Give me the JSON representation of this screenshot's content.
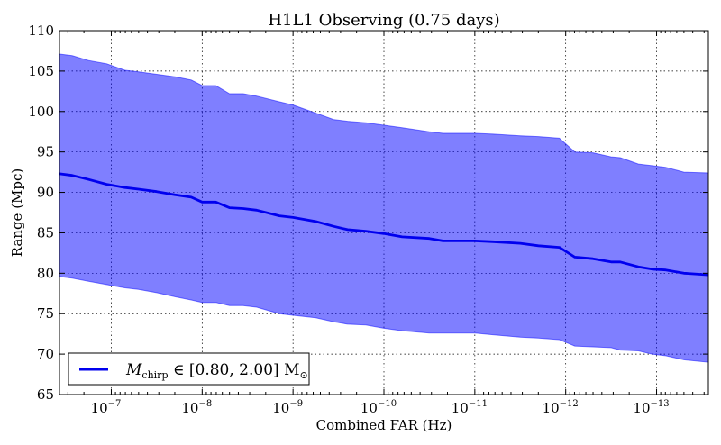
{
  "chart_data": {
    "type": "area",
    "title": "H1L1 Observing (0.75 days)",
    "xlabel": "Combined FAR (Hz)",
    "ylabel": "Range (Mpc)",
    "x_scale": "log",
    "x_reversed": true,
    "xlim_log10": [
      -6.43,
      -13.57
    ],
    "ylim": [
      65,
      110
    ],
    "grid": true,
    "legend_position": "bottom-left",
    "x_ticks": [
      {
        "log10": -7,
        "label": "10",
        "exp": "−7"
      },
      {
        "log10": -8,
        "label": "10",
        "exp": "−8"
      },
      {
        "log10": -9,
        "label": "10",
        "exp": "−9"
      },
      {
        "log10": -10,
        "label": "10",
        "exp": "−10"
      },
      {
        "log10": -11,
        "label": "10",
        "exp": "−11"
      },
      {
        "log10": -12,
        "label": "10",
        "exp": "−12"
      },
      {
        "log10": -13,
        "label": "10",
        "exp": "−13"
      }
    ],
    "y_ticks": [
      65,
      70,
      75,
      80,
      85,
      90,
      95,
      100,
      105,
      110
    ],
    "series": [
      {
        "name": "M_chirp ∈ [0.80, 2.00] M☉",
        "legend_label": "M",
        "legend_sub": "chirp",
        "legend_rest": " ∈ [0.80, 2.00] M",
        "legend_tail": "⊙",
        "color": "#0000ee",
        "band_color": "#0000ff",
        "band_alpha": 0.5,
        "x_log10": [
          -6.43,
          -6.57,
          -6.75,
          -6.95,
          -7.15,
          -7.3,
          -7.5,
          -7.7,
          -7.88,
          -8.0,
          -8.15,
          -8.3,
          -8.45,
          -8.6,
          -8.85,
          -9.0,
          -9.25,
          -9.45,
          -9.6,
          -9.8,
          -10.0,
          -10.2,
          -10.5,
          -10.65,
          -11.0,
          -11.2,
          -11.5,
          -11.7,
          -11.93,
          -12.1,
          -12.3,
          -12.5,
          -12.6,
          -12.8,
          -12.95,
          -13.1,
          -13.3,
          -13.57
        ],
        "center": [
          92.3,
          92.1,
          91.6,
          91.0,
          90.6,
          90.4,
          90.1,
          89.7,
          89.4,
          88.8,
          88.8,
          88.1,
          88.0,
          87.8,
          87.1,
          86.9,
          86.4,
          85.8,
          85.4,
          85.2,
          84.9,
          84.5,
          84.3,
          84.0,
          84.0,
          83.9,
          83.7,
          83.4,
          83.2,
          82.0,
          81.8,
          81.4,
          81.4,
          80.8,
          80.5,
          80.4,
          80.0,
          79.8
        ],
        "upper": [
          107.1,
          106.9,
          106.3,
          105.9,
          105.1,
          104.9,
          104.6,
          104.3,
          103.9,
          103.2,
          103.2,
          102.2,
          102.2,
          101.9,
          101.2,
          100.8,
          99.8,
          99.0,
          98.8,
          98.6,
          98.3,
          98.0,
          97.5,
          97.3,
          97.3,
          97.2,
          97.0,
          96.9,
          96.7,
          95.0,
          94.9,
          94.4,
          94.3,
          93.5,
          93.3,
          93.1,
          92.5,
          92.4
        ],
        "lower": [
          79.6,
          79.4,
          79.0,
          78.6,
          78.2,
          78.0,
          77.6,
          77.1,
          76.7,
          76.4,
          76.4,
          76.0,
          76.0,
          75.8,
          75.0,
          74.8,
          74.5,
          74.0,
          73.7,
          73.6,
          73.2,
          72.9,
          72.6,
          72.6,
          72.6,
          72.4,
          72.1,
          72.0,
          71.8,
          71.0,
          70.9,
          70.8,
          70.5,
          70.4,
          70.0,
          69.8,
          69.3,
          69.0
        ]
      }
    ]
  }
}
